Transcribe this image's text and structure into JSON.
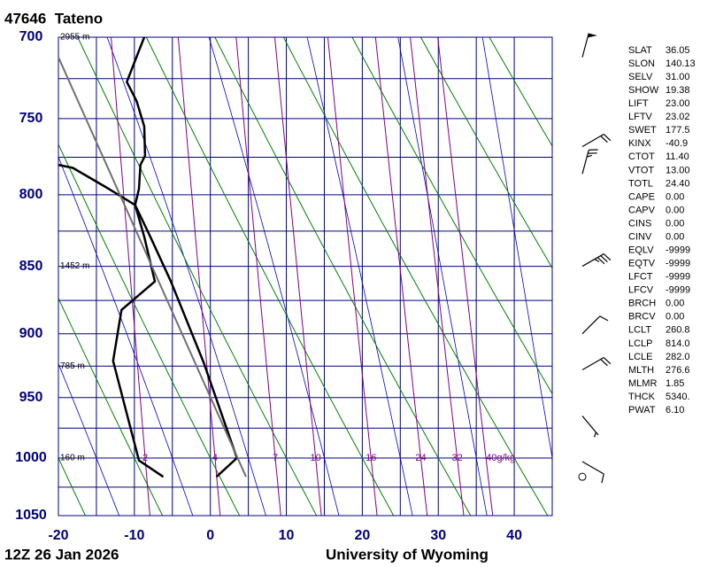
{
  "chart_data": {
    "type": "skewt",
    "title": "47646  Tateno",
    "timestamp": "12Z 26 Jan 2026",
    "source": "University of Wyoming",
    "xlim": [
      -20,
      45
    ],
    "xticks": [
      -20,
      -10,
      0,
      10,
      20,
      30,
      40
    ],
    "xgrid": [
      -20,
      -15,
      -10,
      -5,
      0,
      5,
      10,
      15,
      20,
      25,
      30,
      35,
      40,
      45
    ],
    "ylim": [
      1050,
      700
    ],
    "ylog": true,
    "yticks": [
      700,
      750,
      800,
      850,
      900,
      950,
      1000,
      1050
    ],
    "ygrid": [
      700,
      725,
      750,
      775,
      800,
      825,
      850,
      875,
      900,
      925,
      950,
      975,
      1000,
      1025,
      1050
    ],
    "grid_color": "#00007f",
    "dry_adiabat_color": "#008000",
    "moist_adiabat_color": "#0000c0",
    "mixing_ratio": {
      "color": "#800080",
      "lines": [
        2,
        4,
        7,
        10,
        16,
        24,
        32,
        {
          "value": 40,
          "label": "40g/kg"
        }
      ]
    },
    "series": [
      {
        "color": "#000000",
        "x": [
          -8.7,
          -11.0,
          -9.7,
          -8.7,
          -8.6,
          -9.2,
          -9.4,
          -9.9,
          -7.9,
          -5.2,
          -0.9,
          3.5,
          0.8
        ],
        "y": [
          700,
          727,
          739,
          755,
          774,
          780,
          796,
          807,
          829,
          861,
          922,
          1000,
          1016
        ]
      },
      {
        "color": "#000000",
        "x": [
          -20.0,
          -18.1,
          -13.7,
          -9.9,
          -8.7,
          -7.3,
          -11.7,
          -12.8,
          -9.4,
          -6.2
        ],
        "y": [
          780,
          782,
          795,
          807,
          829,
          861,
          882,
          921,
          1002,
          1016
        ]
      },
      {
        "color": "#707070",
        "x": [
          -20,
          4.7
        ],
        "y": [
          712,
          1016
        ]
      }
    ],
    "heights": [
      {
        "value": 700,
        "label": "2955 m"
      },
      {
        "value": 850,
        "label": "1452 m"
      },
      {
        "value": 925,
        "label": "785 m"
      },
      {
        "value": 1000,
        "label": "160 m"
      }
    ],
    "wind_barbs": [
      {
        "pressure": 712,
        "direction": 15,
        "speed": 50
      },
      {
        "pressure": 768,
        "direction": 60,
        "speed": 20
      },
      {
        "pressure": 786,
        "direction": 15,
        "speed": 25
      },
      {
        "pressure": 850,
        "direction": 60,
        "speed": 35
      },
      {
        "pressure": 900,
        "direction": 45,
        "speed": 10
      },
      {
        "pressure": 928,
        "direction": 60,
        "speed": 20
      },
      {
        "pressure": 965,
        "direction": 140,
        "speed": 5
      },
      {
        "pressure": 1003,
        "direction": 120,
        "speed": 10
      },
      {
        "pressure": 1016,
        "direction": 0,
        "speed": 0
      }
    ]
  },
  "indices": [
    {
      "name": "SLAT",
      "value": "36.05"
    },
    {
      "name": "SLON",
      "value": "140.13"
    },
    {
      "name": "SELV",
      "value": "31.00"
    },
    {
      "name": "SHOW",
      "value": "19.38"
    },
    {
      "name": "LIFT",
      "value": "23.00"
    },
    {
      "name": "LFTV",
      "value": "23.02"
    },
    {
      "name": "SWET",
      "value": "177.5"
    },
    {
      "name": "KINX",
      "value": "-40.9"
    },
    {
      "name": "CTOT",
      "value": "11.40"
    },
    {
      "name": "VTOT",
      "value": "13.00"
    },
    {
      "name": "TOTL",
      "value": "24.40"
    },
    {
      "name": "CAPE",
      "value": "0.00"
    },
    {
      "name": "CAPV",
      "value": "0.00"
    },
    {
      "name": "CINS",
      "value": "0.00"
    },
    {
      "name": "CINV",
      "value": "0.00"
    },
    {
      "name": "EQLV",
      "value": "-9999"
    },
    {
      "name": "EQTV",
      "value": "-9999"
    },
    {
      "name": "LFCT",
      "value": "-9999"
    },
    {
      "name": "LFCV",
      "value": "-9999"
    },
    {
      "name": "BRCH",
      "value": "0.00"
    },
    {
      "name": "BRCV",
      "value": "0.00"
    },
    {
      "name": "LCLT",
      "value": "260.8"
    },
    {
      "name": "LCLP",
      "value": "814.0"
    },
    {
      "name": "LCLE",
      "value": "282.0"
    },
    {
      "name": "MLTH",
      "value": "276.6"
    },
    {
      "name": "MLMR",
      "value": "1.85"
    },
    {
      "name": "THCK",
      "value": "5340."
    },
    {
      "name": "PWAT",
      "value": "6.10"
    }
  ]
}
